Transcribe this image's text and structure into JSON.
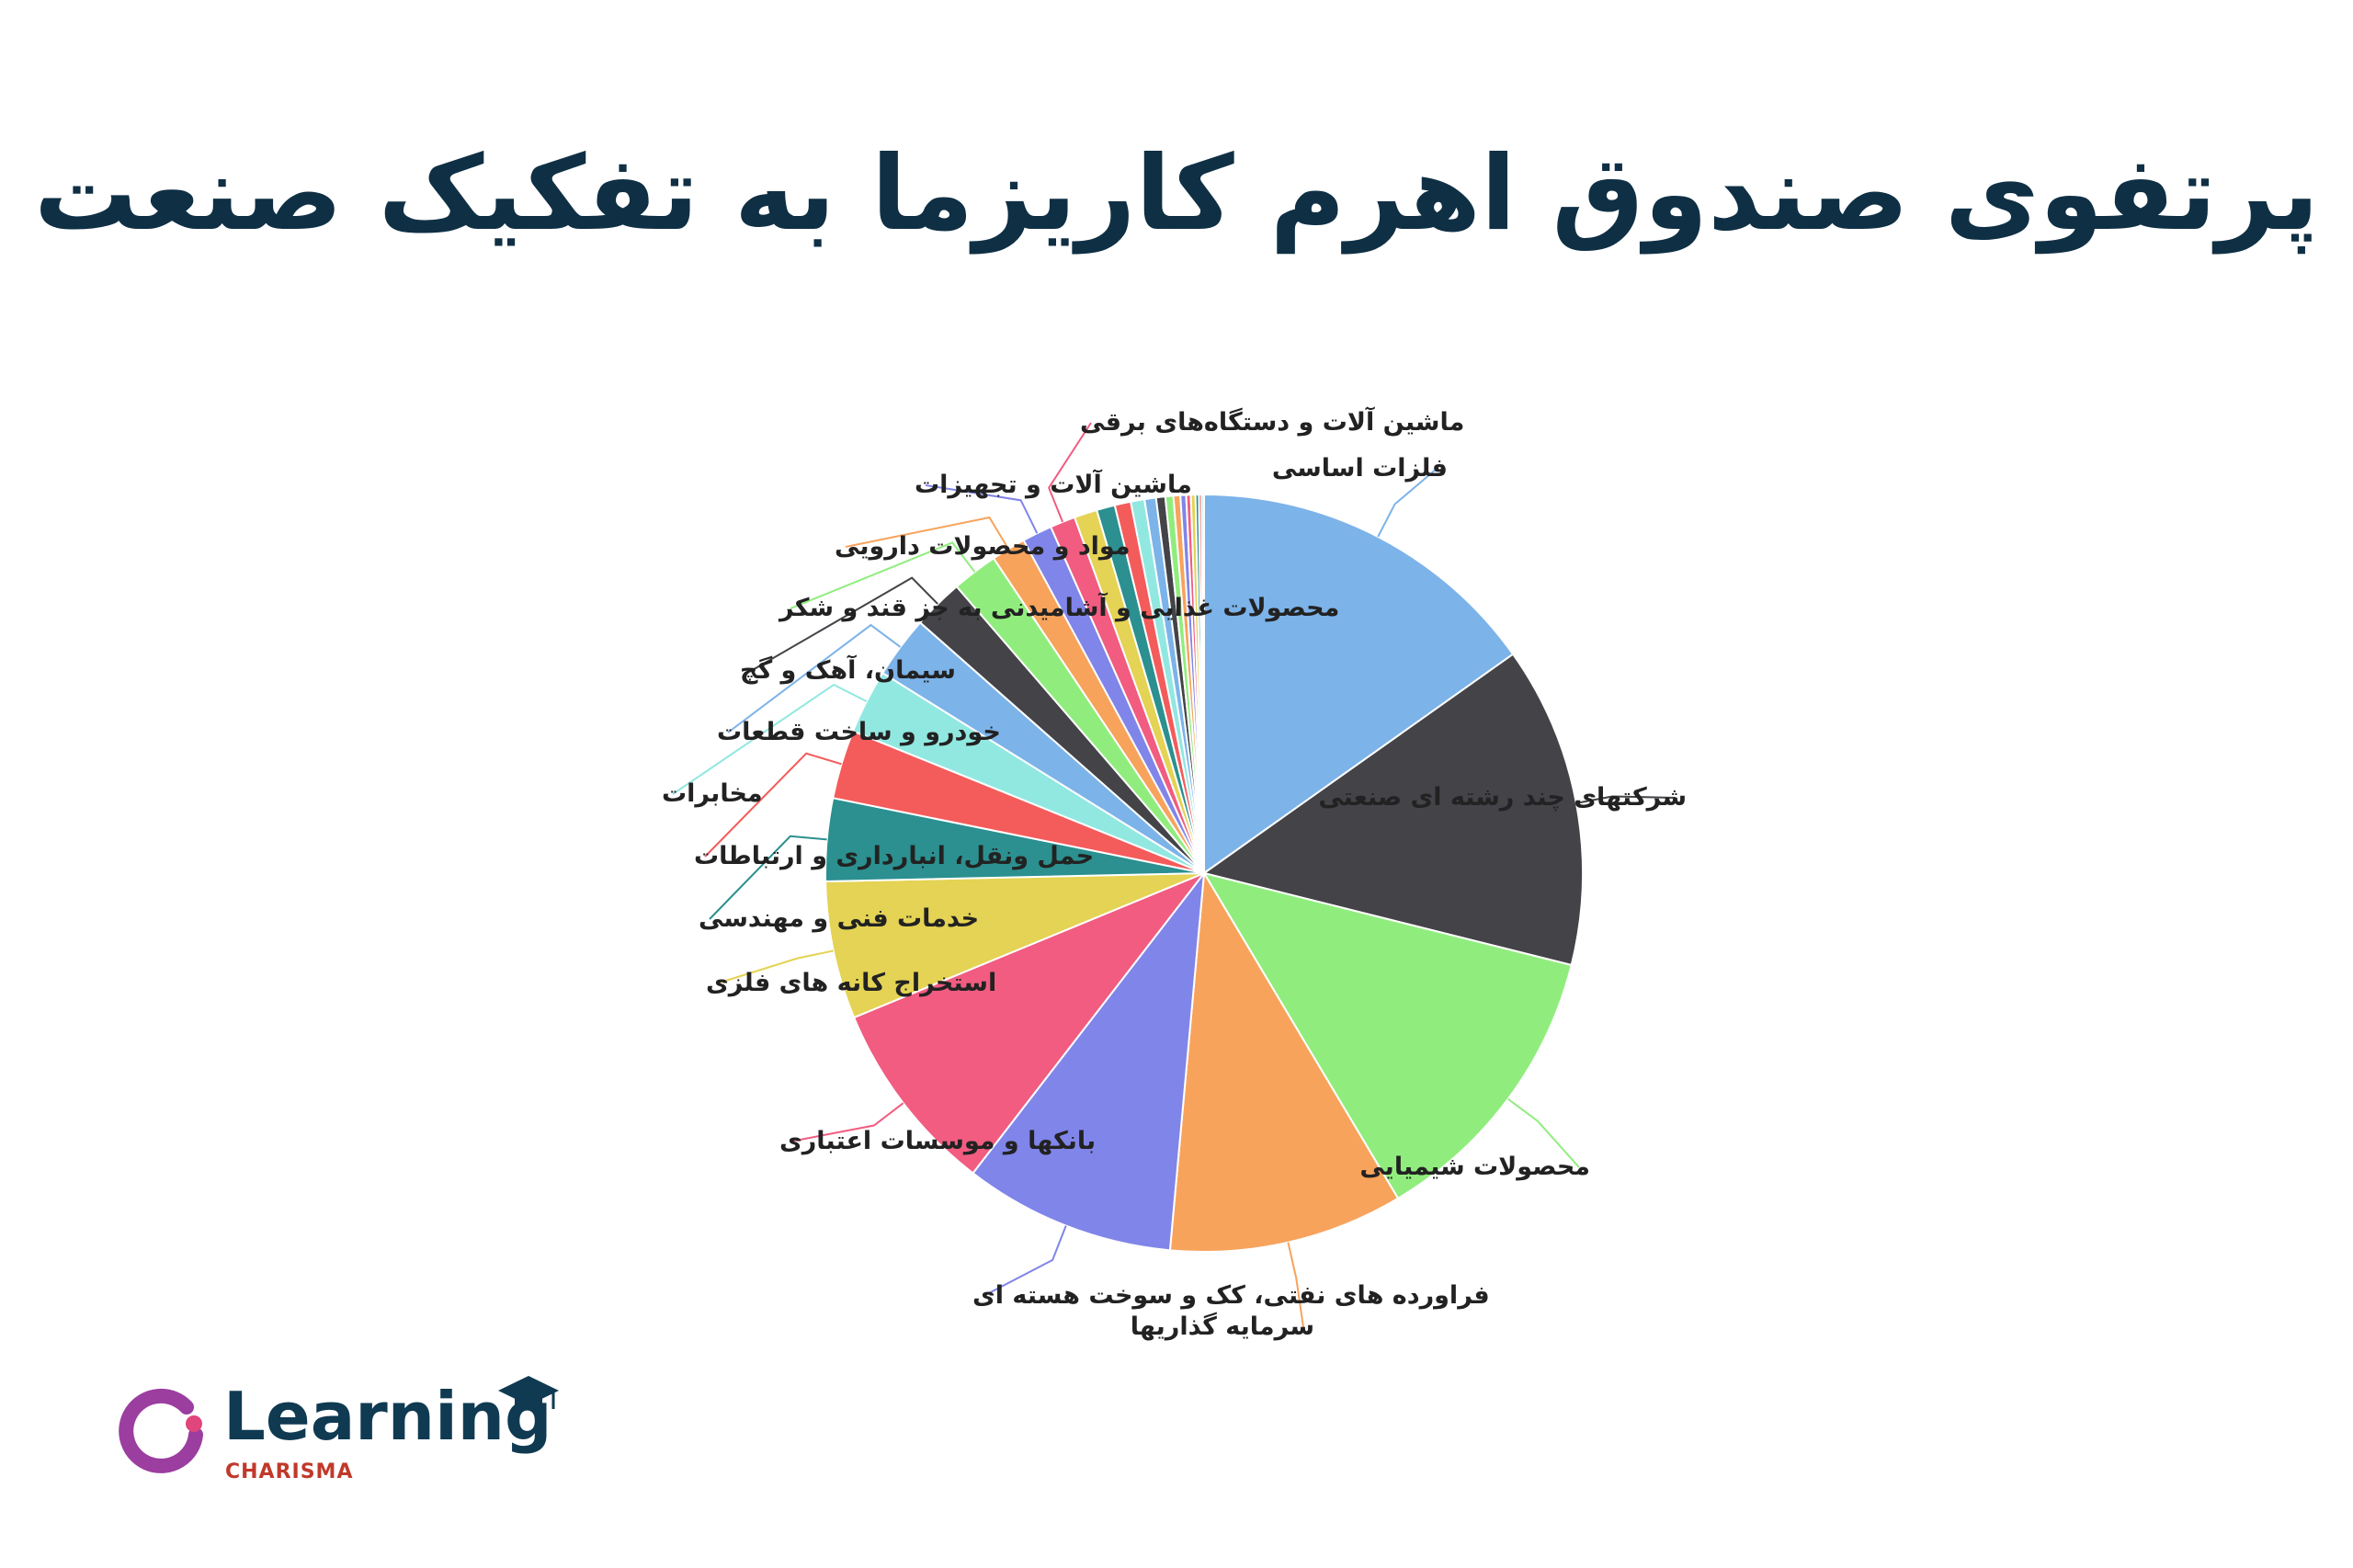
{
  "title": "پرتفوی صندوق اهرم کاریزما به تفکیک صنعت",
  "logo": {
    "word": "Learning",
    "sub": "CHARISMA"
  },
  "chart_data": {
    "type": "pie",
    "start": "top",
    "direction": "clockwise",
    "slices": [
      {
        "label": "فلزات اساسی",
        "value": 15.5,
        "color": "#7cb3e9"
      },
      {
        "label": "شرکتهای چند رشته ای صنعتی",
        "value": 14.0,
        "color": "#434348"
      },
      {
        "label": "محصولات شیمیایی",
        "value": 12.8,
        "color": "#90ed7d"
      },
      {
        "label": "سرمایه گذاریها",
        "value": 10.2,
        "color": "#f7a35c"
      },
      {
        "label": "فراورده های نفتی، کک و سوخت هسته ای",
        "value": 9.2,
        "color": "#8085e9"
      },
      {
        "label": "بانکها و موسسات اعتباری",
        "value": 8.5,
        "color": "#f15c80"
      },
      {
        "label": "استخراج کانه های فلزی",
        "value": 6.0,
        "color": "#e4d354"
      },
      {
        "label": "خدمات فنی و مهندسی",
        "value": 3.6,
        "color": "#2b908f"
      },
      {
        "label": "حمل ونقل، انبارداری و ارتباطات",
        "value": 3.0,
        "color": "#f45b5b"
      },
      {
        "label": "مخابرات",
        "value": 2.8,
        "color": "#91e8e1"
      },
      {
        "label": "خودرو و ساخت قطعات",
        "value": 2.7,
        "color": "#7cb3e9"
      },
      {
        "label": "سیمان، آهک و گچ",
        "value": 2.2,
        "color": "#434348"
      },
      {
        "label": "محصولات غذایی و آشامیدنی به جز قند و شکر",
        "value": 2.0,
        "color": "#90ed7d"
      },
      {
        "label": "مواد و محصولات دارویی",
        "value": 1.5,
        "color": "#f7a35c"
      },
      {
        "label": "ماشین آلات و تجهیزات",
        "value": 1.3,
        "color": "#8085e9"
      },
      {
        "label": "ماشین آلات و دستگاه‌های برقی",
        "value": 1.1,
        "color": "#f15c80"
      },
      {
        "label": "",
        "value": 1.0,
        "color": "#e4d354"
      },
      {
        "label": "",
        "value": 0.8,
        "color": "#2b908f"
      },
      {
        "label": "",
        "value": 0.7,
        "color": "#f45b5b"
      },
      {
        "label": "",
        "value": 0.6,
        "color": "#91e8e1"
      },
      {
        "label": "",
        "value": 0.5,
        "color": "#7cb3e9"
      },
      {
        "label": "",
        "value": 0.4,
        "color": "#434348"
      },
      {
        "label": "",
        "value": 0.35,
        "color": "#90ed7d"
      },
      {
        "label": "",
        "value": 0.3,
        "color": "#f7a35c"
      },
      {
        "label": "",
        "value": 0.25,
        "color": "#8085e9"
      },
      {
        "label": "",
        "value": 0.2,
        "color": "#f15c80"
      },
      {
        "label": "",
        "value": 0.2,
        "color": "#e4d354"
      },
      {
        "label": "",
        "value": 0.15,
        "color": "#2b908f"
      },
      {
        "label": "",
        "value": 0.12,
        "color": "#f45b5b"
      },
      {
        "label": "",
        "value": 0.1,
        "color": "#91e8e1"
      }
    ]
  }
}
